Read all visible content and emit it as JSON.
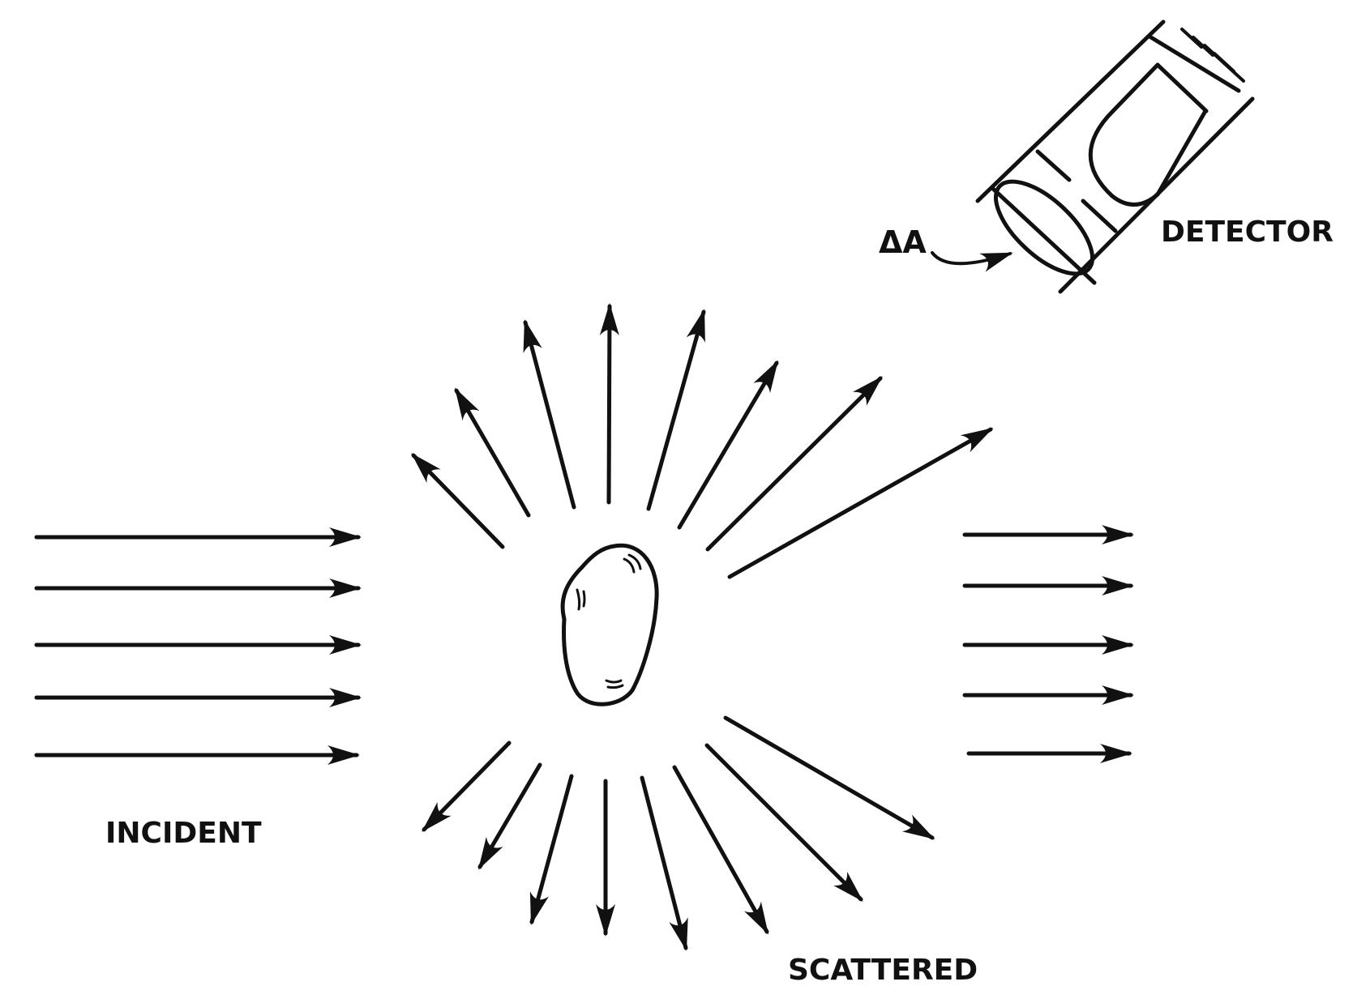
{
  "labels": {
    "incident": "INCIDENT",
    "scattered": "SCATTERED",
    "detector": "DETECTOR",
    "area": "ΔA"
  },
  "colors": {
    "ink": "#111111",
    "background": "#ffffff"
  }
}
